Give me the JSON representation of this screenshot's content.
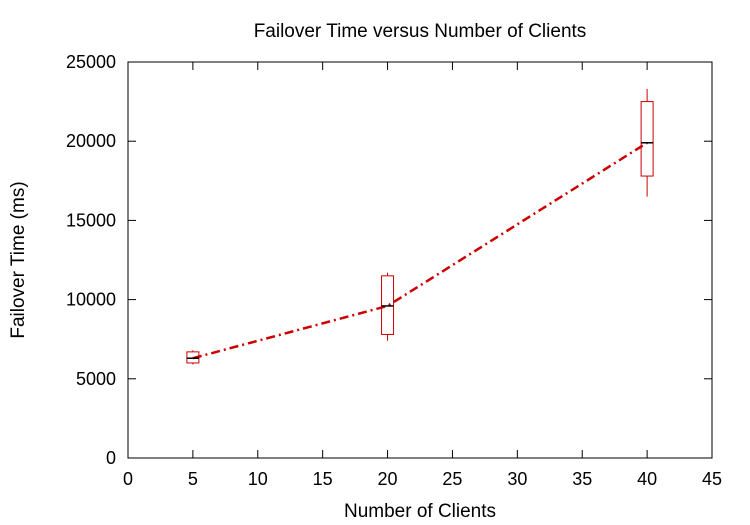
{
  "chart_data": {
    "type": "line",
    "title": "Failover Time versus Number of Clients",
    "xlabel": "Number of Clients",
    "ylabel": "Failover Time (ms)",
    "xlim": [
      0,
      45
    ],
    "ylim": [
      0,
      25000
    ],
    "xticks": [
      0,
      5,
      10,
      15,
      20,
      25,
      30,
      35,
      40,
      45
    ],
    "yticks": [
      0,
      5000,
      10000,
      15000,
      20000,
      25000
    ],
    "grid": false,
    "legend": "none",
    "series": [
      {
        "line_style": "dash-dot",
        "color": "#cc0000",
        "points": [
          {
            "x": 5,
            "y": 6300,
            "box_low": 6000,
            "box_high": 6700,
            "whisker_low": 5900,
            "whisker_high": 6800
          },
          {
            "x": 20,
            "y": 9600,
            "box_low": 7800,
            "box_high": 11500,
            "whisker_low": 7400,
            "whisker_high": 11700
          },
          {
            "x": 40,
            "y": 19900,
            "box_low": 17800,
            "box_high": 22500,
            "whisker_low": 16500,
            "whisker_high": 23300
          }
        ]
      }
    ]
  }
}
